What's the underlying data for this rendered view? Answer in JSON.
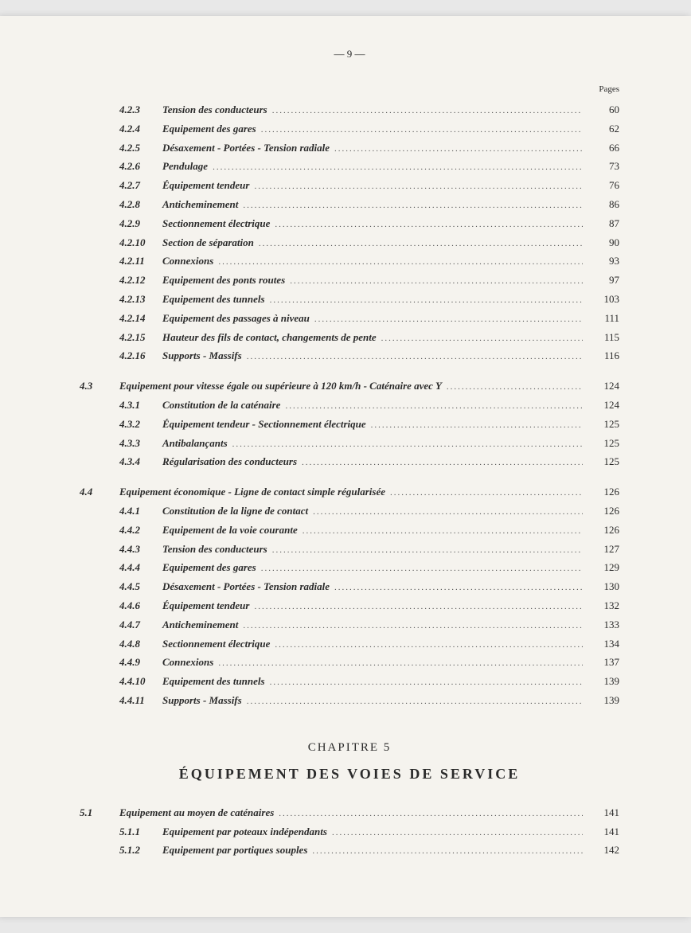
{
  "page_number_text": "— 9 —",
  "pages_label": "Pages",
  "chapter_5": {
    "heading": "CHAPITRE 5",
    "title": "ÉQUIPEMENT DES VOIES DE SERVICE"
  },
  "entries": [
    {
      "level": 3,
      "num": "4.2.3",
      "title": "Tension des conducteurs",
      "page": "60"
    },
    {
      "level": 3,
      "num": "4.2.4",
      "title": "Equipement des gares",
      "page": "62"
    },
    {
      "level": 3,
      "num": "4.2.5",
      "title": "Désaxement - Portées - Tension radiale",
      "page": "66"
    },
    {
      "level": 3,
      "num": "4.2.6",
      "title": "Pendulage",
      "page": "73"
    },
    {
      "level": 3,
      "num": "4.2.7",
      "title": "Équipement tendeur",
      "page": "76"
    },
    {
      "level": 3,
      "num": "4.2.8",
      "title": "Anticheminement",
      "page": "86"
    },
    {
      "level": 3,
      "num": "4.2.9",
      "title": "Sectionnement électrique",
      "page": "87"
    },
    {
      "level": 3,
      "num": "4.2.10",
      "title": "Section de séparation",
      "page": "90"
    },
    {
      "level": 3,
      "num": "4.2.11",
      "title": "Connexions",
      "page": "93"
    },
    {
      "level": 3,
      "num": "4.2.12",
      "title": "Equipement des ponts routes",
      "page": "97"
    },
    {
      "level": 3,
      "num": "4.2.13",
      "title": "Equipement des tunnels",
      "page": "103"
    },
    {
      "level": 3,
      "num": "4.2.14",
      "title": "Equipement des passages à niveau",
      "page": "111"
    },
    {
      "level": 3,
      "num": "4.2.15",
      "title": "Hauteur des fils de contact, changements de pente",
      "page": "115"
    },
    {
      "level": 3,
      "num": "4.2.16",
      "title": "Supports - Massifs",
      "page": "116"
    },
    {
      "spacer": true
    },
    {
      "level": 2,
      "num": "4.3",
      "title": "Equipement pour vitesse égale ou supérieure à 120 km/h - Caténaire avec Y",
      "page": "124"
    },
    {
      "level": 3,
      "num": "4.3.1",
      "title": "Constitution de la caténaire",
      "page": "124"
    },
    {
      "level": 3,
      "num": "4.3.2",
      "title": "Équipement tendeur - Sectionnement électrique",
      "page": "125"
    },
    {
      "level": 3,
      "num": "4.3.3",
      "title": "Antibalançants",
      "page": "125"
    },
    {
      "level": 3,
      "num": "4.3.4",
      "title": "Régularisation des conducteurs",
      "page": "125"
    },
    {
      "spacer": true
    },
    {
      "level": 2,
      "num": "4.4",
      "title": "Equipement économique - Ligne de contact simple régularisée",
      "page": "126"
    },
    {
      "level": 3,
      "num": "4.4.1",
      "title": "Constitution de la ligne de contact",
      "page": "126"
    },
    {
      "level": 3,
      "num": "4.4.2",
      "title": "Equipement de la voie courante",
      "page": "126"
    },
    {
      "level": 3,
      "num": "4.4.3",
      "title": "Tension des conducteurs",
      "page": "127"
    },
    {
      "level": 3,
      "num": "4.4.4",
      "title": "Equipement des gares",
      "page": "129"
    },
    {
      "level": 3,
      "num": "4.4.5",
      "title": "Désaxement - Portées - Tension radiale",
      "page": "130"
    },
    {
      "level": 3,
      "num": "4.4.6",
      "title": "Équipement tendeur",
      "page": "132"
    },
    {
      "level": 3,
      "num": "4.4.7",
      "title": "Anticheminement",
      "page": "133"
    },
    {
      "level": 3,
      "num": "4.4.8",
      "title": "Sectionnement électrique",
      "page": "134"
    },
    {
      "level": 3,
      "num": "4.4.9",
      "title": "Connexions",
      "page": "137"
    },
    {
      "level": 3,
      "num": "4.4.10",
      "title": "Equipement des tunnels",
      "page": "139"
    },
    {
      "level": 3,
      "num": "4.4.11",
      "title": "Supports - Massifs",
      "page": "139"
    },
    {
      "chapter": true
    },
    {
      "level": 2,
      "num": "5.1",
      "title": "Equipement au moyen de caténaires",
      "page": "141"
    },
    {
      "level": 3,
      "num": "5.1.1",
      "title": "Equipement par poteaux indépendants",
      "page": "141"
    },
    {
      "level": 3,
      "num": "5.1.2",
      "title": "Equipement par portiques souples",
      "page": "142"
    }
  ],
  "leader_dots": "........................................................................................................................"
}
